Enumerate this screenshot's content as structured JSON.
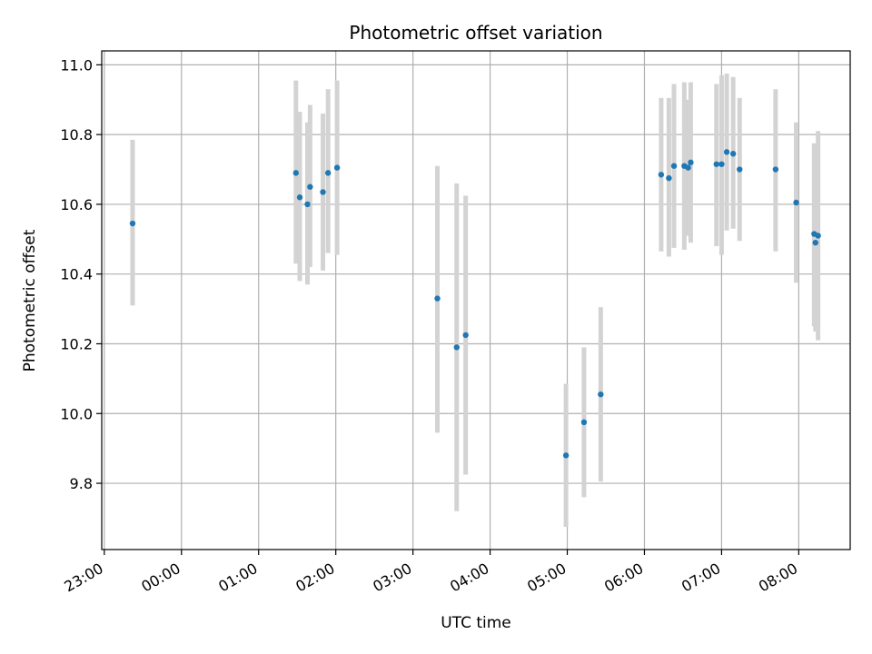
{
  "chart_data": {
    "type": "scatter",
    "title": "Photometric offset variation",
    "xlabel": "UTC time",
    "ylabel": "Photometric offset",
    "x_unit": "UTC time of day",
    "xlim": [
      "22:58",
      "08:40"
    ],
    "ylim": [
      9.61,
      11.04
    ],
    "grid": true,
    "x_ticks": [
      "23:00",
      "00:00",
      "01:00",
      "02:00",
      "03:00",
      "04:00",
      "05:00",
      "06:00",
      "07:00",
      "08:00"
    ],
    "y_ticks": [
      9.8,
      10.0,
      10.2,
      10.4,
      10.6,
      10.8,
      11.0
    ],
    "y_tick_labels": [
      "9.8",
      "10.0",
      "10.2",
      "10.4",
      "10.6",
      "10.8",
      "11.0"
    ],
    "colors": {
      "point": "#1f77b4",
      "errorbar": "#d3d3d3",
      "grid": "#b0b0b0"
    },
    "series": [
      {
        "points": [
          {
            "x": "23:22",
            "y": 10.545,
            "lo": 10.31,
            "hi": 10.785
          },
          {
            "x": "01:29",
            "y": 10.69,
            "lo": 10.43,
            "hi": 10.955
          },
          {
            "x": "01:32",
            "y": 10.62,
            "lo": 10.38,
            "hi": 10.865
          },
          {
            "x": "01:38",
            "y": 10.6,
            "lo": 10.37,
            "hi": 10.835
          },
          {
            "x": "01:40",
            "y": 10.65,
            "lo": 10.42,
            "hi": 10.885
          },
          {
            "x": "01:50",
            "y": 10.635,
            "lo": 10.41,
            "hi": 10.86
          },
          {
            "x": "01:54",
            "y": 10.69,
            "lo": 10.46,
            "hi": 10.93
          },
          {
            "x": "02:01",
            "y": 10.705,
            "lo": 10.455,
            "hi": 10.955
          },
          {
            "x": "03:19",
            "y": 10.33,
            "lo": 9.945,
            "hi": 10.71
          },
          {
            "x": "03:34",
            "y": 10.19,
            "lo": 9.72,
            "hi": 10.66
          },
          {
            "x": "03:41",
            "y": 10.225,
            "lo": 9.825,
            "hi": 10.625
          },
          {
            "x": "04:59",
            "y": 9.88,
            "lo": 9.675,
            "hi": 10.085
          },
          {
            "x": "05:13",
            "y": 9.975,
            "lo": 9.76,
            "hi": 10.19
          },
          {
            "x": "05:26",
            "y": 10.055,
            "lo": 9.805,
            "hi": 10.305
          },
          {
            "x": "06:13",
            "y": 10.685,
            "lo": 10.465,
            "hi": 10.905
          },
          {
            "x": "06:19",
            "y": 10.675,
            "lo": 10.45,
            "hi": 10.905
          },
          {
            "x": "06:23",
            "y": 10.71,
            "lo": 10.475,
            "hi": 10.945
          },
          {
            "x": "06:31",
            "y": 10.71,
            "lo": 10.47,
            "hi": 10.95
          },
          {
            "x": "06:34",
            "y": 10.705,
            "lo": 10.51,
            "hi": 10.9
          },
          {
            "x": "06:36",
            "y": 10.72,
            "lo": 10.49,
            "hi": 10.95
          },
          {
            "x": "06:56",
            "y": 10.715,
            "lo": 10.48,
            "hi": 10.945
          },
          {
            "x": "07:00",
            "y": 10.715,
            "lo": 10.455,
            "hi": 10.97
          },
          {
            "x": "07:04",
            "y": 10.75,
            "lo": 10.525,
            "hi": 10.975
          },
          {
            "x": "07:09",
            "y": 10.745,
            "lo": 10.53,
            "hi": 10.965
          },
          {
            "x": "07:14",
            "y": 10.7,
            "lo": 10.495,
            "hi": 10.905
          },
          {
            "x": "07:42",
            "y": 10.7,
            "lo": 10.465,
            "hi": 10.93
          },
          {
            "x": "07:58",
            "y": 10.605,
            "lo": 10.375,
            "hi": 10.835
          },
          {
            "x": "08:12",
            "y": 10.515,
            "lo": 10.25,
            "hi": 10.775
          },
          {
            "x": "08:13",
            "y": 10.49,
            "lo": 10.235,
            "hi": 10.76
          },
          {
            "x": "08:15",
            "y": 10.51,
            "lo": 10.21,
            "hi": 10.81
          }
        ]
      }
    ]
  }
}
